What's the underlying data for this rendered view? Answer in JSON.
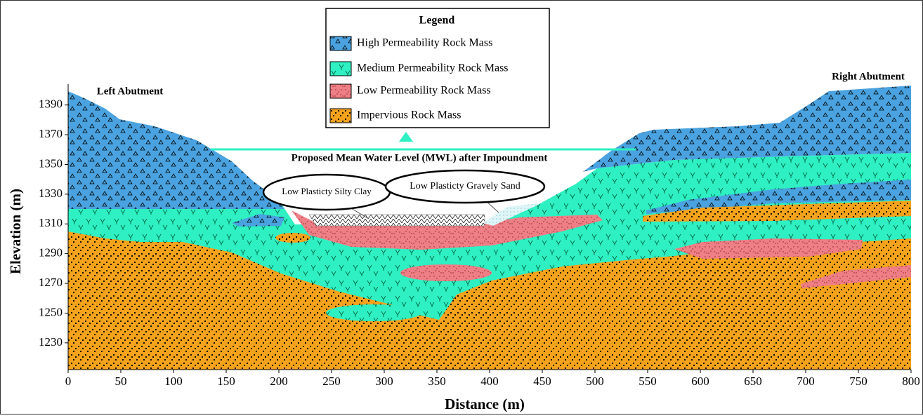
{
  "chart_data": {
    "type": "cross-section",
    "x_label": "Distance (m)",
    "y_label": "Elevation (m)",
    "xlim": [
      0,
      800
    ],
    "ylim": [
      1212,
      1404
    ],
    "xticks": [
      0,
      50,
      100,
      150,
      200,
      250,
      300,
      350,
      400,
      450,
      500,
      550,
      600,
      650,
      700,
      750,
      800
    ],
    "yticks": [
      1230,
      1250,
      1270,
      1290,
      1310,
      1330,
      1350,
      1370,
      1390
    ],
    "legend": {
      "title": "Legend",
      "items": [
        {
          "name": "High Permeability Rock Mass",
          "color": "#4aa3e0"
        },
        {
          "name": "Medium Permeability Rock Mass",
          "color": "#2ef0c2"
        },
        {
          "name": "Low Permeability Rock Mass",
          "color": "#ee7f86"
        },
        {
          "name": "Impervious Rock Mass",
          "color": "#f5a21c"
        }
      ]
    },
    "annotations": {
      "left": "Left Abutment",
      "right": "Right Abutment",
      "water_level": "Proposed Mean Water Level (MWL) after Impoundment",
      "clay": "Low Plasticty Silty Clay",
      "sand": "Low Plasticty Gravely Sand"
    }
  }
}
